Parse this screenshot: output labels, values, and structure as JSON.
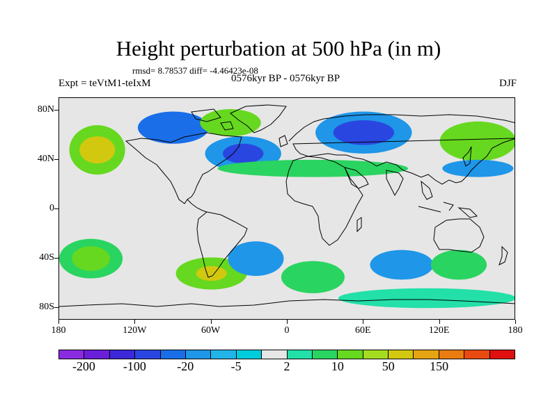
{
  "title": "Height perturbation at 500 hPa (in m)",
  "stats_text": "rmsd= 8.78537 diff= -4.46423e-08",
  "experiment": "Expt = teVtM1-teIxM",
  "period": "0576kyr BP - 0576kyr BP",
  "season": "DJF",
  "map": {
    "projection": "cylindrical-equidistant",
    "lon_range": [
      -180,
      180
    ],
    "lat_range": [
      -90,
      90
    ],
    "lat_labels": [
      {
        "lat": 80,
        "text": "80N"
      },
      {
        "lat": 40,
        "text": "40N"
      },
      {
        "lat": 0,
        "text": "0"
      },
      {
        "lat": -40,
        "text": "40S"
      },
      {
        "lat": -80,
        "text": "80S"
      }
    ],
    "lon_labels": [
      {
        "lon": -180,
        "text": "180"
      },
      {
        "lon": -120,
        "text": "120W"
      },
      {
        "lon": -60,
        "text": "60W"
      },
      {
        "lon": 0,
        "text": "0"
      },
      {
        "lon": 60,
        "text": "60E"
      },
      {
        "lon": 120,
        "text": "120E"
      },
      {
        "lon": 180,
        "text": "180"
      }
    ],
    "background_color": "#e6e6e6",
    "fields": [
      {
        "lon": -150,
        "lat": 48,
        "rx": 22,
        "ry": 20,
        "level": 11
      },
      {
        "lon": -150,
        "lat": 48,
        "rx": 14,
        "ry": 11,
        "level": 13
      },
      {
        "lon": -90,
        "lat": 66,
        "rx": 28,
        "ry": 13,
        "level": 4
      },
      {
        "lon": -45,
        "lat": 70,
        "rx": 24,
        "ry": 11,
        "level": 11
      },
      {
        "lon": -35,
        "lat": 45,
        "rx": 30,
        "ry": 14,
        "level": 5
      },
      {
        "lon": -35,
        "lat": 45,
        "rx": 16,
        "ry": 8,
        "level": 3
      },
      {
        "lon": 60,
        "lat": 62,
        "rx": 38,
        "ry": 17,
        "level": 5
      },
      {
        "lon": 60,
        "lat": 62,
        "rx": 24,
        "ry": 10,
        "level": 3
      },
      {
        "lon": 20,
        "lat": 33,
        "rx": 75,
        "ry": 7,
        "level": 10
      },
      {
        "lon": 150,
        "lat": 55,
        "rx": 30,
        "ry": 16,
        "level": 11
      },
      {
        "lon": 150,
        "lat": 33,
        "rx": 28,
        "ry": 7,
        "level": 5
      },
      {
        "lon": -155,
        "lat": -40,
        "rx": 25,
        "ry": 16,
        "level": 10
      },
      {
        "lon": -155,
        "lat": -40,
        "rx": 15,
        "ry": 10,
        "level": 11
      },
      {
        "lon": -60,
        "lat": -52,
        "rx": 28,
        "ry": 13,
        "level": 11
      },
      {
        "lon": -60,
        "lat": -52,
        "rx": 12,
        "ry": 6,
        "level": 13
      },
      {
        "lon": -25,
        "lat": -40,
        "rx": 22,
        "ry": 14,
        "level": 5
      },
      {
        "lon": 20,
        "lat": -55,
        "rx": 25,
        "ry": 13,
        "level": 10
      },
      {
        "lon": 90,
        "lat": -45,
        "rx": 25,
        "ry": 12,
        "level": 5
      },
      {
        "lon": 135,
        "lat": -45,
        "rx": 22,
        "ry": 12,
        "level": 10
      },
      {
        "lon": 110,
        "lat": -72,
        "rx": 70,
        "ry": 8,
        "level": 9
      }
    ]
  },
  "colorbar": {
    "colors": [
      "#8a2be2",
      "#6a1fd8",
      "#3c28d8",
      "#2a46e0",
      "#1a6ee8",
      "#1f96e8",
      "#22b4e8",
      "#00ccdc",
      "#e6e6e6",
      "#22e0a8",
      "#2ad460",
      "#66d820",
      "#a6dc20",
      "#d2c810",
      "#e6a412",
      "#ea7c10",
      "#e84a10",
      "#e01010"
    ],
    "labels": [
      {
        "boundary": 1,
        "text": "-200"
      },
      {
        "boundary": 3,
        "text": "-100"
      },
      {
        "boundary": 5,
        "text": "-20"
      },
      {
        "boundary": 7,
        "text": "-5"
      },
      {
        "boundary": 9,
        "text": "2"
      },
      {
        "boundary": 11,
        "text": "10"
      },
      {
        "boundary": 13,
        "text": "50"
      },
      {
        "boundary": 15,
        "text": "150"
      }
    ]
  }
}
